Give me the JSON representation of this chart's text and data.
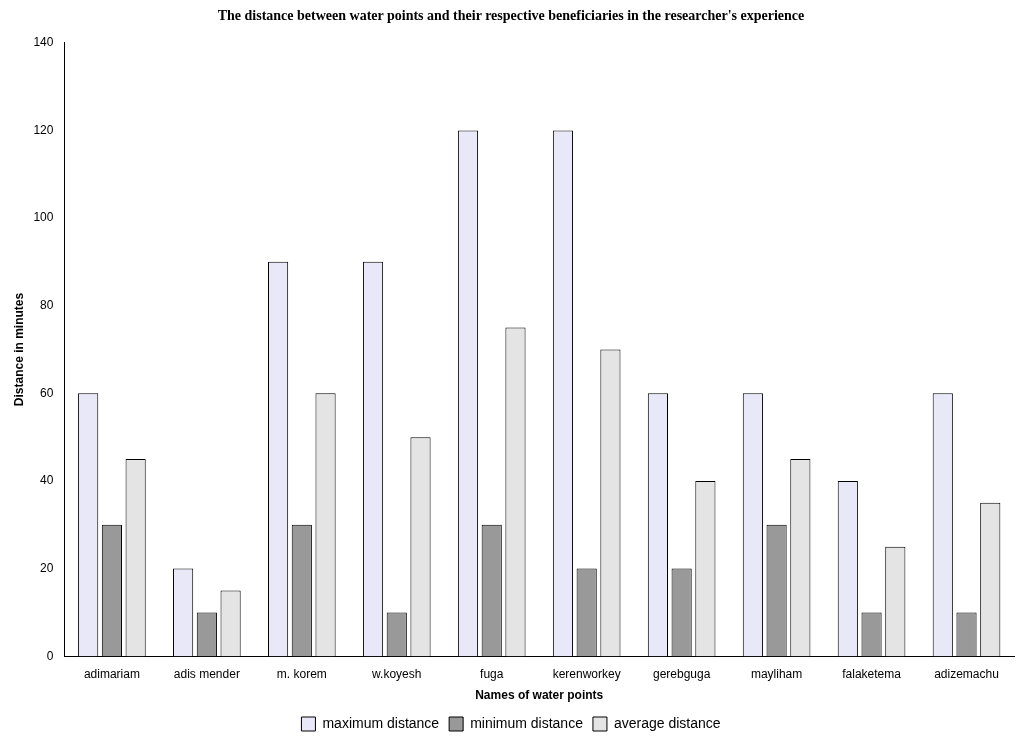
{
  "chart_data": {
    "type": "bar",
    "title": "The distance between water points and their respective beneficiaries in the researcher's experience",
    "xlabel": "Names of water points",
    "ylabel": "Distance in minutes",
    "categories": [
      "adimariam",
      "adis mender",
      "m. korem",
      "w.koyesh",
      "fuga",
      "kerenworkey",
      "gerebguga",
      "mayliham",
      "falaketema",
      "adizemachu"
    ],
    "series": [
      {
        "name": "maximum distance",
        "color": "#e8e8f8",
        "values": [
          60,
          20,
          90,
          90,
          120,
          120,
          60,
          60,
          40,
          60
        ]
      },
      {
        "name": "minimum distance",
        "color": "#999999",
        "values": [
          30,
          10,
          30,
          10,
          30,
          20,
          20,
          30,
          10,
          10
        ]
      },
      {
        "name": "average distance",
        "color": "#e4e4e4",
        "values": [
          45,
          15,
          60,
          50,
          75,
          70,
          40,
          45,
          25,
          35
        ]
      }
    ],
    "ylim": [
      0,
      140
    ],
    "yticks": [
      0,
      20,
      40,
      60,
      80,
      100,
      120,
      140
    ],
    "grid": false,
    "legend": "bottom"
  }
}
